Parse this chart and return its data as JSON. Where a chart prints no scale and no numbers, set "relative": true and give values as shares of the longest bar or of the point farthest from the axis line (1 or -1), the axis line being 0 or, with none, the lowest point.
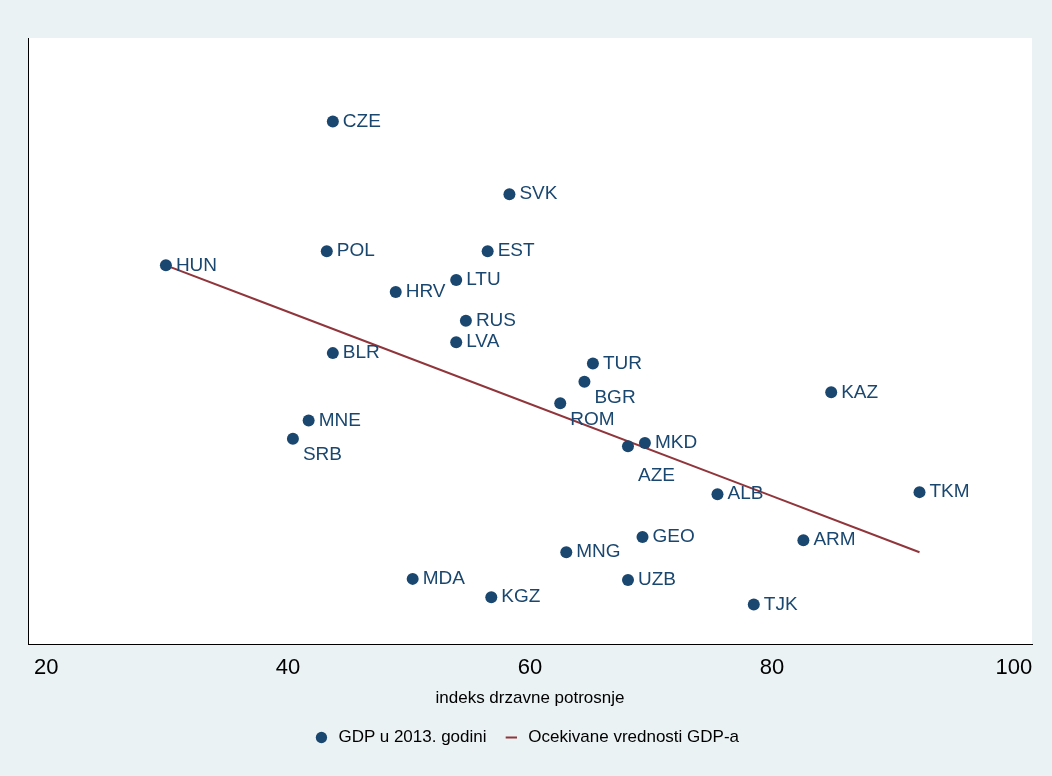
{
  "chart_data": {
    "type": "scatter",
    "relative": true,
    "xlabel": "indeks drzavne potrosnje",
    "x": [
      43.7,
      58.3,
      29.9,
      43.2,
      56.5,
      53.9,
      48.9,
      54.7,
      53.9,
      43.7,
      65.2,
      64.5,
      84.9,
      62.5,
      41.7,
      40.4,
      69.5,
      68.1,
      75.5,
      92.2,
      69.3,
      82.6,
      63.0,
      50.3,
      68.1,
      56.8,
      78.5
    ],
    "xlim": [
      18.5,
      101.5
    ],
    "xticks": [
      20,
      40,
      60,
      80,
      100
    ],
    "series": [
      {
        "name": "GDP u 2013. godini",
        "color": "#1a476f",
        "marker": "circle",
        "values": [
          1.0,
          0.861,
          0.725,
          0.752,
          0.752,
          0.697,
          0.674,
          0.619,
          0.578,
          0.557,
          0.537,
          0.502,
          0.482,
          0.461,
          0.428,
          0.393,
          0.385,
          0.379,
          0.287,
          0.291,
          0.205,
          0.199,
          0.176,
          0.125,
          0.123,
          0.09,
          0.076
        ]
      },
      {
        "name": "Ocekivane vrednosti GDP-a",
        "type": "line",
        "color": "#90353b",
        "marker": "none",
        "x": [
          29.9,
          92.2
        ],
        "values": [
          0.725,
          0.176
        ]
      }
    ],
    "annotations": [
      {
        "text": "CZE",
        "x": 43.7,
        "y": 1.0
      },
      {
        "text": "SVK",
        "x": 58.3,
        "y": 0.861
      },
      {
        "text": "HUN",
        "x": 29.9,
        "y": 0.725
      },
      {
        "text": "POL",
        "x": 43.2,
        "y": 0.752
      },
      {
        "text": "EST",
        "x": 56.5,
        "y": 0.752
      },
      {
        "text": "LTU",
        "x": 53.9,
        "y": 0.697
      },
      {
        "text": "HRV",
        "x": 48.9,
        "y": 0.674
      },
      {
        "text": "RUS",
        "x": 54.7,
        "y": 0.619
      },
      {
        "text": "LVA",
        "x": 53.9,
        "y": 0.578
      },
      {
        "text": "BLR",
        "x": 43.7,
        "y": 0.557
      },
      {
        "text": "TUR",
        "x": 65.2,
        "y": 0.537
      },
      {
        "text": "BGR",
        "x": 64.5,
        "y": 0.502
      },
      {
        "text": "KAZ",
        "x": 84.9,
        "y": 0.482
      },
      {
        "text": "ROM",
        "x": 62.5,
        "y": 0.461
      },
      {
        "text": "MNE",
        "x": 41.7,
        "y": 0.428
      },
      {
        "text": "SRB",
        "x": 40.4,
        "y": 0.393
      },
      {
        "text": "MKD",
        "x": 69.5,
        "y": 0.385
      },
      {
        "text": "AZE",
        "x": 68.1,
        "y": 0.379
      },
      {
        "text": "ALB",
        "x": 75.5,
        "y": 0.287
      },
      {
        "text": "TKM",
        "x": 92.2,
        "y": 0.291
      },
      {
        "text": "GEO",
        "x": 69.3,
        "y": 0.205
      },
      {
        "text": "ARM",
        "x": 82.6,
        "y": 0.199
      },
      {
        "text": "MNG",
        "x": 63.0,
        "y": 0.176
      },
      {
        "text": "MDA",
        "x": 50.3,
        "y": 0.125
      },
      {
        "text": "UZB",
        "x": 68.1,
        "y": 0.123
      },
      {
        "text": "KGZ",
        "x": 56.8,
        "y": 0.09
      },
      {
        "text": "TJK",
        "x": 78.5,
        "y": 0.076
      }
    ],
    "legend": "bottom"
  }
}
